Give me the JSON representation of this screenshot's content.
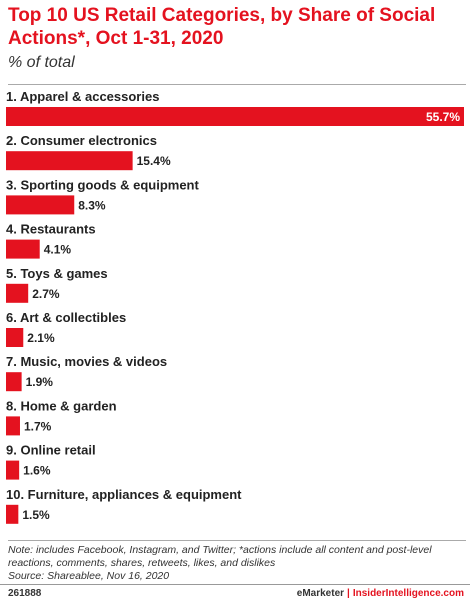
{
  "chart_data": {
    "type": "bar",
    "orientation": "horizontal",
    "title": "Top 10 US Retail Categories, by Share of Social Actions*, Oct 1-31, 2020",
    "subtitle": "% of total",
    "categories": [
      "1. Apparel & accessories",
      "2. Consumer electronics",
      "3. Sporting goods & equipment",
      "4. Restaurants",
      "5. Toys & games",
      "6. Art & collectibles",
      "7. Music, movies & videos",
      "8. Home & garden",
      "9. Online retail",
      "10. Furniture, appliances & equipment"
    ],
    "values": [
      55.7,
      15.4,
      8.3,
      4.1,
      2.7,
      2.1,
      1.9,
      1.7,
      1.6,
      1.5
    ],
    "value_labels": [
      "55.7%",
      "15.4%",
      "8.3%",
      "4.1%",
      "2.7%",
      "2.1%",
      "1.9%",
      "1.7%",
      "1.6%",
      "1.5%"
    ],
    "xlim": [
      0,
      55.7
    ],
    "grid": false,
    "bar_color": "#e4121f"
  },
  "note": "Note: includes Facebook, Instagram, and Twitter; *actions include all content and post-level reactions, comments, shares, retweets, likes, and dislikes",
  "source": "Source: Shareablee, Nov 16, 2020",
  "footer": {
    "id": "261888",
    "brand": "eMarketer",
    "separator": "|",
    "brand2": "InsiderIntelligence.com"
  }
}
